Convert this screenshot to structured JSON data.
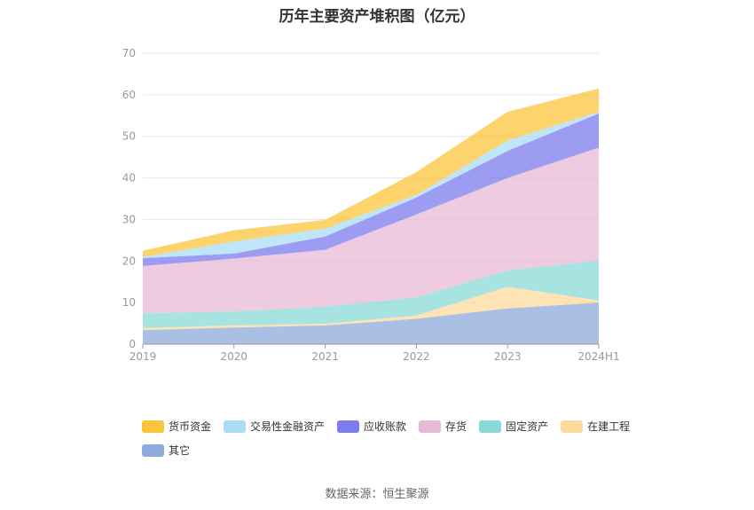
{
  "chart_data": {
    "type": "area",
    "title": "历年主要资产堆积图（亿元）",
    "categories": [
      "2019",
      "2020",
      "2021",
      "2022",
      "2023",
      "2024H1"
    ],
    "ylim": [
      0,
      70
    ],
    "yticks": [
      0,
      10,
      20,
      30,
      40,
      50,
      60,
      70
    ],
    "grid": true,
    "legend_position": "bottom",
    "stacked": true,
    "series": [
      {
        "name": "其它",
        "color": "#8EA9DB",
        "values": [
          3.4,
          4.0,
          4.5,
          6.1,
          8.6,
          10.0
        ]
      },
      {
        "name": "在建工程",
        "color": "#FDD99C",
        "values": [
          0.5,
          0.5,
          0.4,
          0.8,
          5.2,
          0.5
        ]
      },
      {
        "name": "固定资产",
        "color": "#8AD9D6",
        "values": [
          3.5,
          3.4,
          4.1,
          4.4,
          4.0,
          9.6
        ]
      },
      {
        "name": "存货",
        "color": "#E8B9D6",
        "values": [
          11.4,
          12.7,
          13.7,
          19.9,
          22.2,
          27.2
        ]
      },
      {
        "name": "应收账款",
        "color": "#7B7CEE",
        "values": [
          1.9,
          1.2,
          3.2,
          4.1,
          6.5,
          8.2
        ]
      },
      {
        "name": "交易性金融资产",
        "color": "#A9DCF7",
        "values": [
          0.3,
          2.9,
          1.9,
          0.6,
          2.5,
          0.4
        ]
      },
      {
        "name": "货币资金",
        "color": "#FBC43B",
        "values": [
          1.5,
          2.7,
          2.1,
          5.5,
          6.9,
          5.6
        ]
      }
    ],
    "legend_order": [
      "货币资金",
      "交易性金融资产",
      "应收账款",
      "存货",
      "固定资产",
      "在建工程",
      "其它"
    ]
  },
  "source": "数据来源：恒生聚源"
}
